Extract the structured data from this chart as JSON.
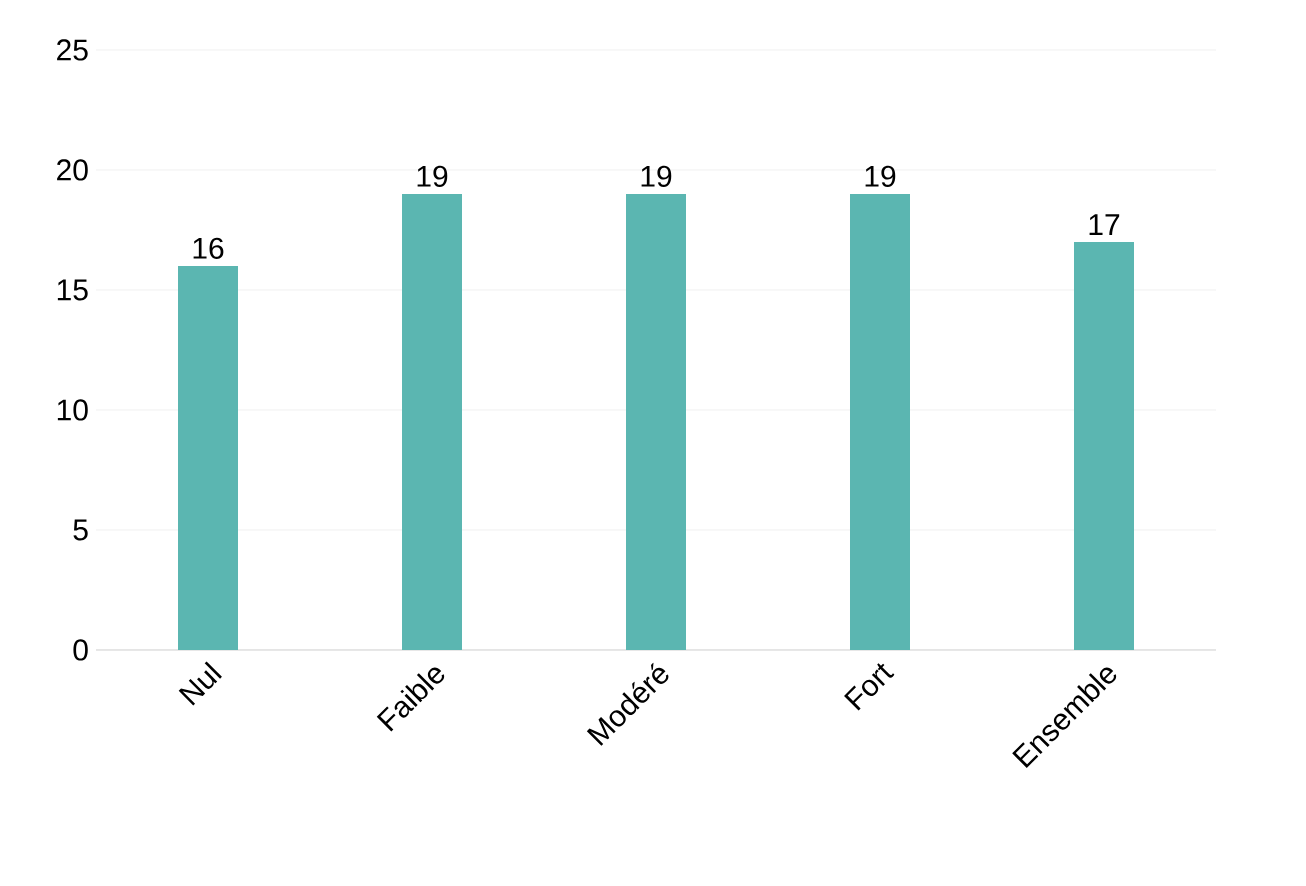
{
  "chart_data": {
    "type": "bar",
    "categories": [
      "Nul",
      "Faible",
      "Modéré",
      "Fort",
      "Ensemble"
    ],
    "values": [
      16,
      19,
      19,
      19,
      17
    ],
    "color": "#5bb6b1",
    "ylim": [
      0,
      25
    ],
    "yticks": [
      0,
      5,
      10,
      15,
      20,
      25
    ],
    "grid": "y",
    "data_labels": true
  }
}
